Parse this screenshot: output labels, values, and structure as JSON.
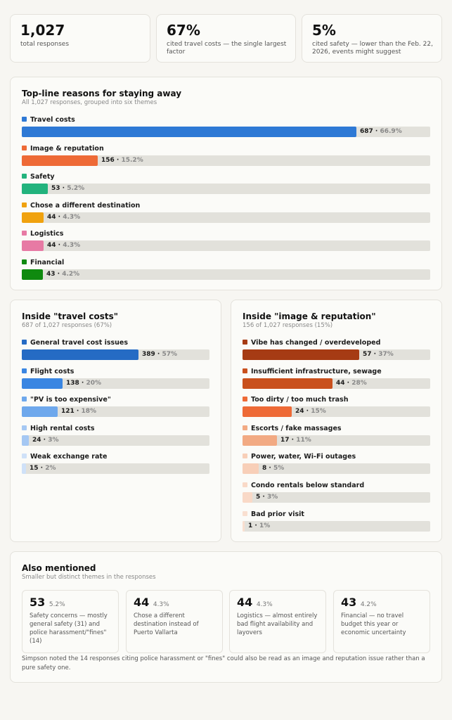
{
  "stats": [
    {
      "value": "1,027",
      "desc": "total responses"
    },
    {
      "value": "67%",
      "desc": "cited travel costs — the single largest factor"
    },
    {
      "value": "5%",
      "desc": "cited safety — lower than the Feb. 22, 2026, events might suggest"
    }
  ],
  "topline": {
    "title": "Top-line reasons for staying away",
    "subtitle": "All 1,027 responses, grouped into six themes",
    "items": [
      {
        "label": "Travel costs",
        "count": "687",
        "pct": "66.9%",
        "fraction": 0.819,
        "color": "#2e79d5"
      },
      {
        "label": "Image & reputation",
        "count": "156",
        "pct": "15.2%",
        "fraction": 0.186,
        "color": "#ee6a36"
      },
      {
        "label": "Safety",
        "count": "53",
        "pct": "5.2%",
        "fraction": 0.063,
        "color": "#22b37d"
      },
      {
        "label": "Chose a different destination",
        "count": "44",
        "pct": "4.3%",
        "fraction": 0.053,
        "color": "#f0a20e"
      },
      {
        "label": "Logistics",
        "count": "44",
        "pct": "4.3%",
        "fraction": 0.053,
        "color": "#e77aa4"
      },
      {
        "label": "Financial",
        "count": "43",
        "pct": "4.2%",
        "fraction": 0.051,
        "color": "#0f8a0f"
      }
    ]
  },
  "travel": {
    "title": "Inside \"travel costs\"",
    "subtitle": "687 of 1,027 responses (67%)",
    "items": [
      {
        "label": "General travel cost issues",
        "count": "389",
        "pct": "57%",
        "fraction": 0.62,
        "color": "#256bc4"
      },
      {
        "label": "Flight costs",
        "count": "138",
        "pct": "20%",
        "fraction": 0.218,
        "color": "#3a86e2"
      },
      {
        "label": "\"PV is too expensive\"",
        "count": "121",
        "pct": "18%",
        "fraction": 0.191,
        "color": "#6ea8ec"
      },
      {
        "label": "High rental costs",
        "count": "24",
        "pct": "3%",
        "fraction": 0.038,
        "color": "#a5c8f3"
      },
      {
        "label": "Weak exchange rate",
        "count": "15",
        "pct": "2%",
        "fraction": 0.024,
        "color": "#cfe1f8"
      }
    ]
  },
  "image": {
    "title": "Inside \"image & reputation\"",
    "subtitle": "156 of 1,027 responses (15%)",
    "items": [
      {
        "label": "Vibe has changed / overdeveloped",
        "count": "57",
        "pct": "37%",
        "fraction": 0.62,
        "color": "#a63b14"
      },
      {
        "label": "Insufficient infrastructure, sewage",
        "count": "44",
        "pct": "28%",
        "fraction": 0.478,
        "color": "#c9501d"
      },
      {
        "label": "Too dirty / too much trash",
        "count": "24",
        "pct": "15%",
        "fraction": 0.261,
        "color": "#ee6a36"
      },
      {
        "label": "Escorts / fake massages",
        "count": "17",
        "pct": "11%",
        "fraction": 0.185,
        "color": "#f2aa83"
      },
      {
        "label": "Power, water, Wi-Fi outages",
        "count": "8",
        "pct": "5%",
        "fraction": 0.087,
        "color": "#f8cfb8"
      },
      {
        "label": "Condo rentals below standard",
        "count": "5",
        "pct": "3%",
        "fraction": 0.054,
        "color": "#f9d9c7"
      },
      {
        "label": "Bad prior visit",
        "count": "1",
        "pct": "1%",
        "fraction": 0.011,
        "color": "#f9dfd0"
      }
    ]
  },
  "also": {
    "title": "Also mentioned",
    "subtitle": "Smaller but distinct themes in the responses",
    "items": [
      {
        "value": "53",
        "pct": "5.2%",
        "desc": "Safety concerns — mostly general safety (31) and police harassment/\"fines\" (14)"
      },
      {
        "value": "44",
        "pct": "4.3%",
        "desc": "Chose a different destination instead of Puerto Vallarta"
      },
      {
        "value": "44",
        "pct": "4.3%",
        "desc": "Logistics — almost entirely bad flight availability and layovers"
      },
      {
        "value": "43",
        "pct": "4.2%",
        "desc": "Financial — no travel budget this year or economic uncertainty"
      }
    ],
    "note": "Simpson noted the 14 responses citing police harassment or \"fines\" could also be read as an image and reputation issue rather than a pure safety one."
  }
}
